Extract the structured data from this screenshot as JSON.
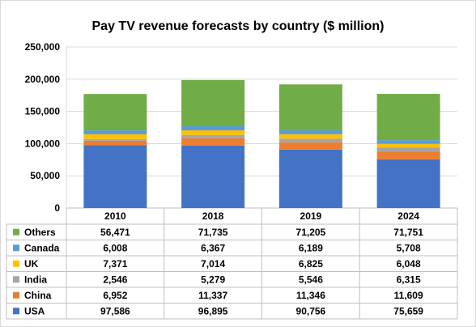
{
  "chart_data": {
    "type": "bar",
    "stacked": true,
    "title": "Pay TV revenue forecasts by country ($ million)",
    "categories": [
      "2010",
      "2018",
      "2019",
      "2024"
    ],
    "ylim": [
      0,
      250000
    ],
    "yticks": [
      "250,000",
      "200,000",
      "150,000",
      "100,000",
      "50,000",
      "0"
    ],
    "grid": true,
    "legend": "data-table",
    "series": [
      {
        "name": "USA",
        "color": "#4472C4",
        "values": [
          97586,
          96895,
          90756,
          75659
        ],
        "labels": [
          "97,586",
          "96,895",
          "90,756",
          "75,659"
        ]
      },
      {
        "name": "China",
        "color": "#ED7D31",
        "values": [
          6952,
          11337,
          11346,
          11609
        ],
        "labels": [
          "6,952",
          "11,337",
          "11,346",
          "11,609"
        ]
      },
      {
        "name": "India",
        "color": "#A5A5A5",
        "values": [
          2546,
          5279,
          5546,
          6315
        ],
        "labels": [
          "2,546",
          "5,279",
          "5,546",
          "6,315"
        ]
      },
      {
        "name": "UK",
        "color": "#FFC000",
        "values": [
          7371,
          7014,
          6825,
          6048
        ],
        "labels": [
          "7,371",
          "7,014",
          "6,825",
          "6,048"
        ]
      },
      {
        "name": "Canada",
        "color": "#5B9BD5",
        "values": [
          6008,
          6367,
          6189,
          5708
        ],
        "labels": [
          "6,008",
          "6,367",
          "6,189",
          "5,708"
        ]
      },
      {
        "name": "Others",
        "color": "#70AD47",
        "values": [
          56471,
          71735,
          71205,
          71751
        ],
        "labels": [
          "56,471",
          "71,735",
          "71,205",
          "71,751"
        ]
      }
    ]
  }
}
